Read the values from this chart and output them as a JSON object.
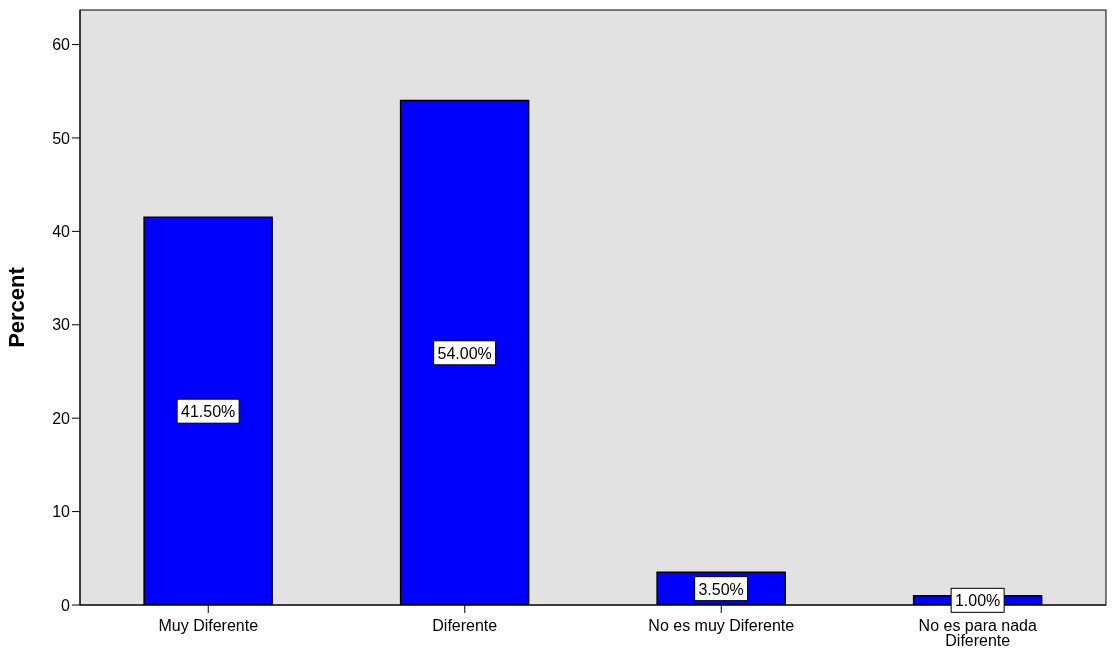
{
  "chart_data": {
    "type": "bar",
    "ylabel": "Percent",
    "categories": [
      "Muy Diferente",
      "Diferente",
      "No es muy Diferente",
      "No es para nada Diferente"
    ],
    "values": [
      41.5,
      54,
      3.5,
      1
    ],
    "value_labels": [
      "41.50%",
      "54.00%",
      "3.50%",
      "1.00%"
    ],
    "color": "#0000ff",
    "ylim": [
      0,
      63.7
    ],
    "yticks": [
      0,
      10,
      20,
      30,
      40,
      50,
      60
    ]
  }
}
